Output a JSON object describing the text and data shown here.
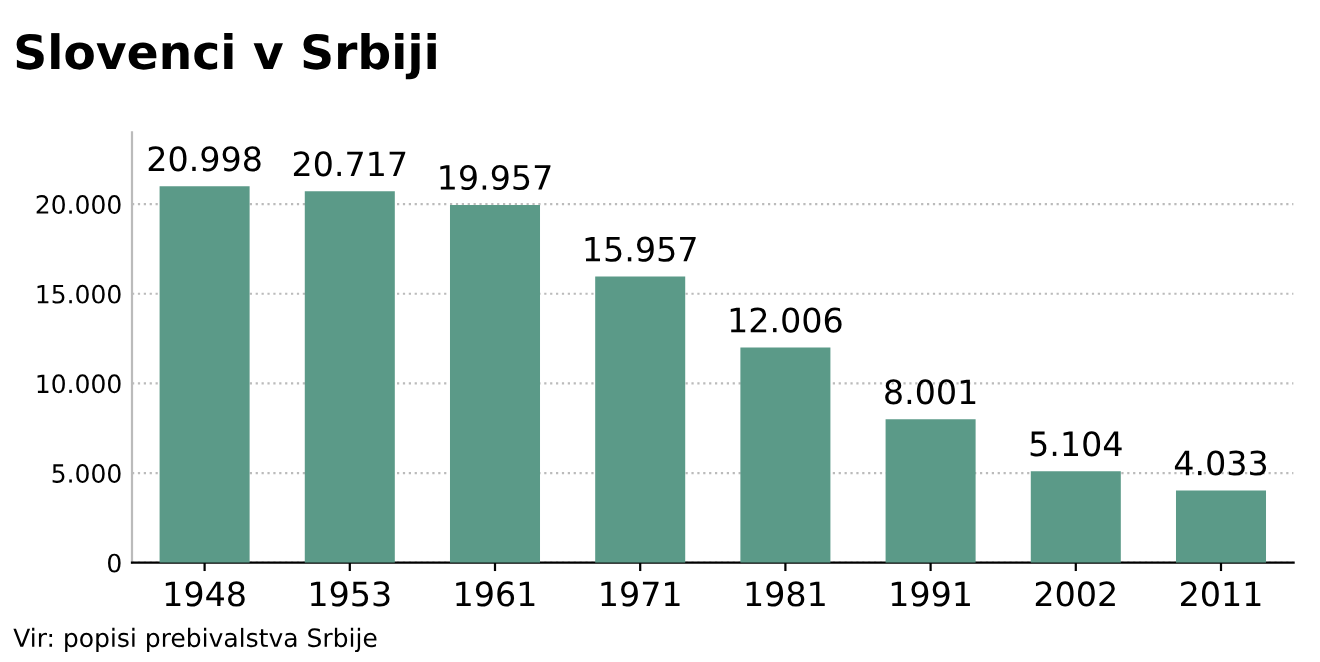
{
  "chart_data": {
    "type": "bar",
    "title": "Slovenci v Srbiji",
    "categories": [
      "1948",
      "1953",
      "1961",
      "1971",
      "1981",
      "1991",
      "2002",
      "2011"
    ],
    "values": [
      20998,
      20717,
      19957,
      15957,
      12006,
      8001,
      5104,
      4033
    ],
    "value_labels": [
      "20.998",
      "20.717",
      "19.957",
      "15.957",
      "12.006",
      "8.001",
      "5.104",
      "4.033"
    ],
    "color": "#5b9a88",
    "ylim": [
      0,
      24000
    ],
    "yticks": [
      0,
      {
        "value": 5000,
        "label": "5.000"
      },
      {
        "value": 10000,
        "label": "10.000"
      },
      {
        "value": 15000,
        "label": "15.000"
      },
      {
        "value": 20000,
        "label": "20.000"
      }
    ],
    "grid": "y",
    "annotations": [
      "Vir: popisi prebivalstva Srbije"
    ]
  }
}
